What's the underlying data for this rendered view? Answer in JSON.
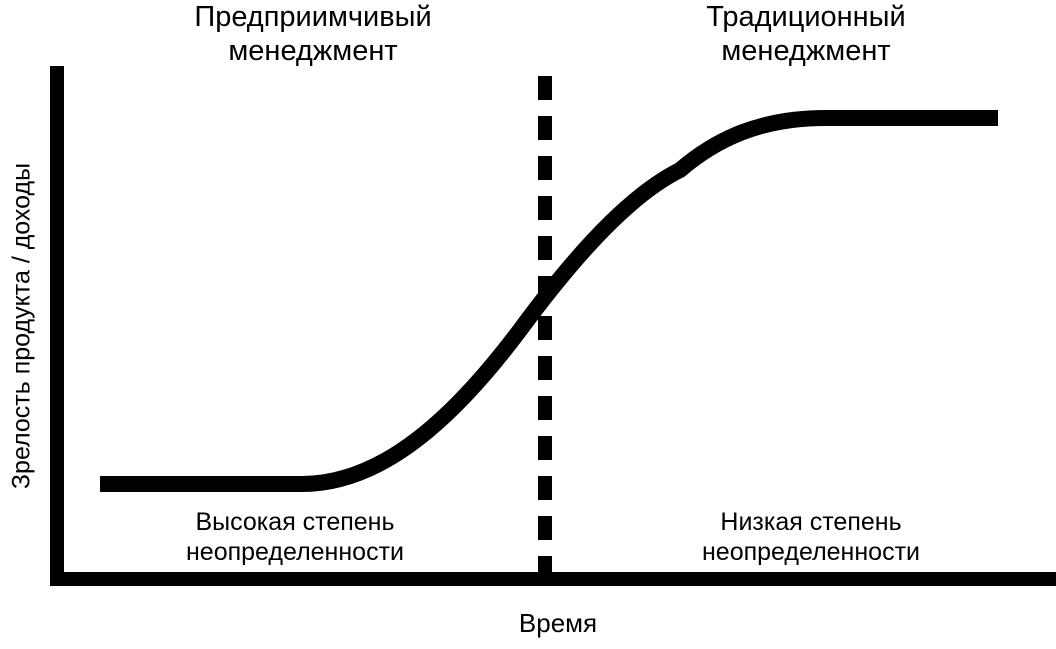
{
  "diagram": {
    "phases": {
      "left": [
        "Предприимчивый",
        "менеджмент"
      ],
      "right": [
        "Традиционный",
        "менеджмент"
      ]
    },
    "regions": {
      "left": [
        "Высокая степень",
        "неопределенности"
      ],
      "right": [
        "Низкая степень",
        "неопределенности"
      ]
    },
    "axes": {
      "x_title": "Время",
      "y_title": "Зрелость продукта / доходы"
    },
    "colors": {
      "ink": "#000000",
      "background": "#ffffff"
    }
  }
}
